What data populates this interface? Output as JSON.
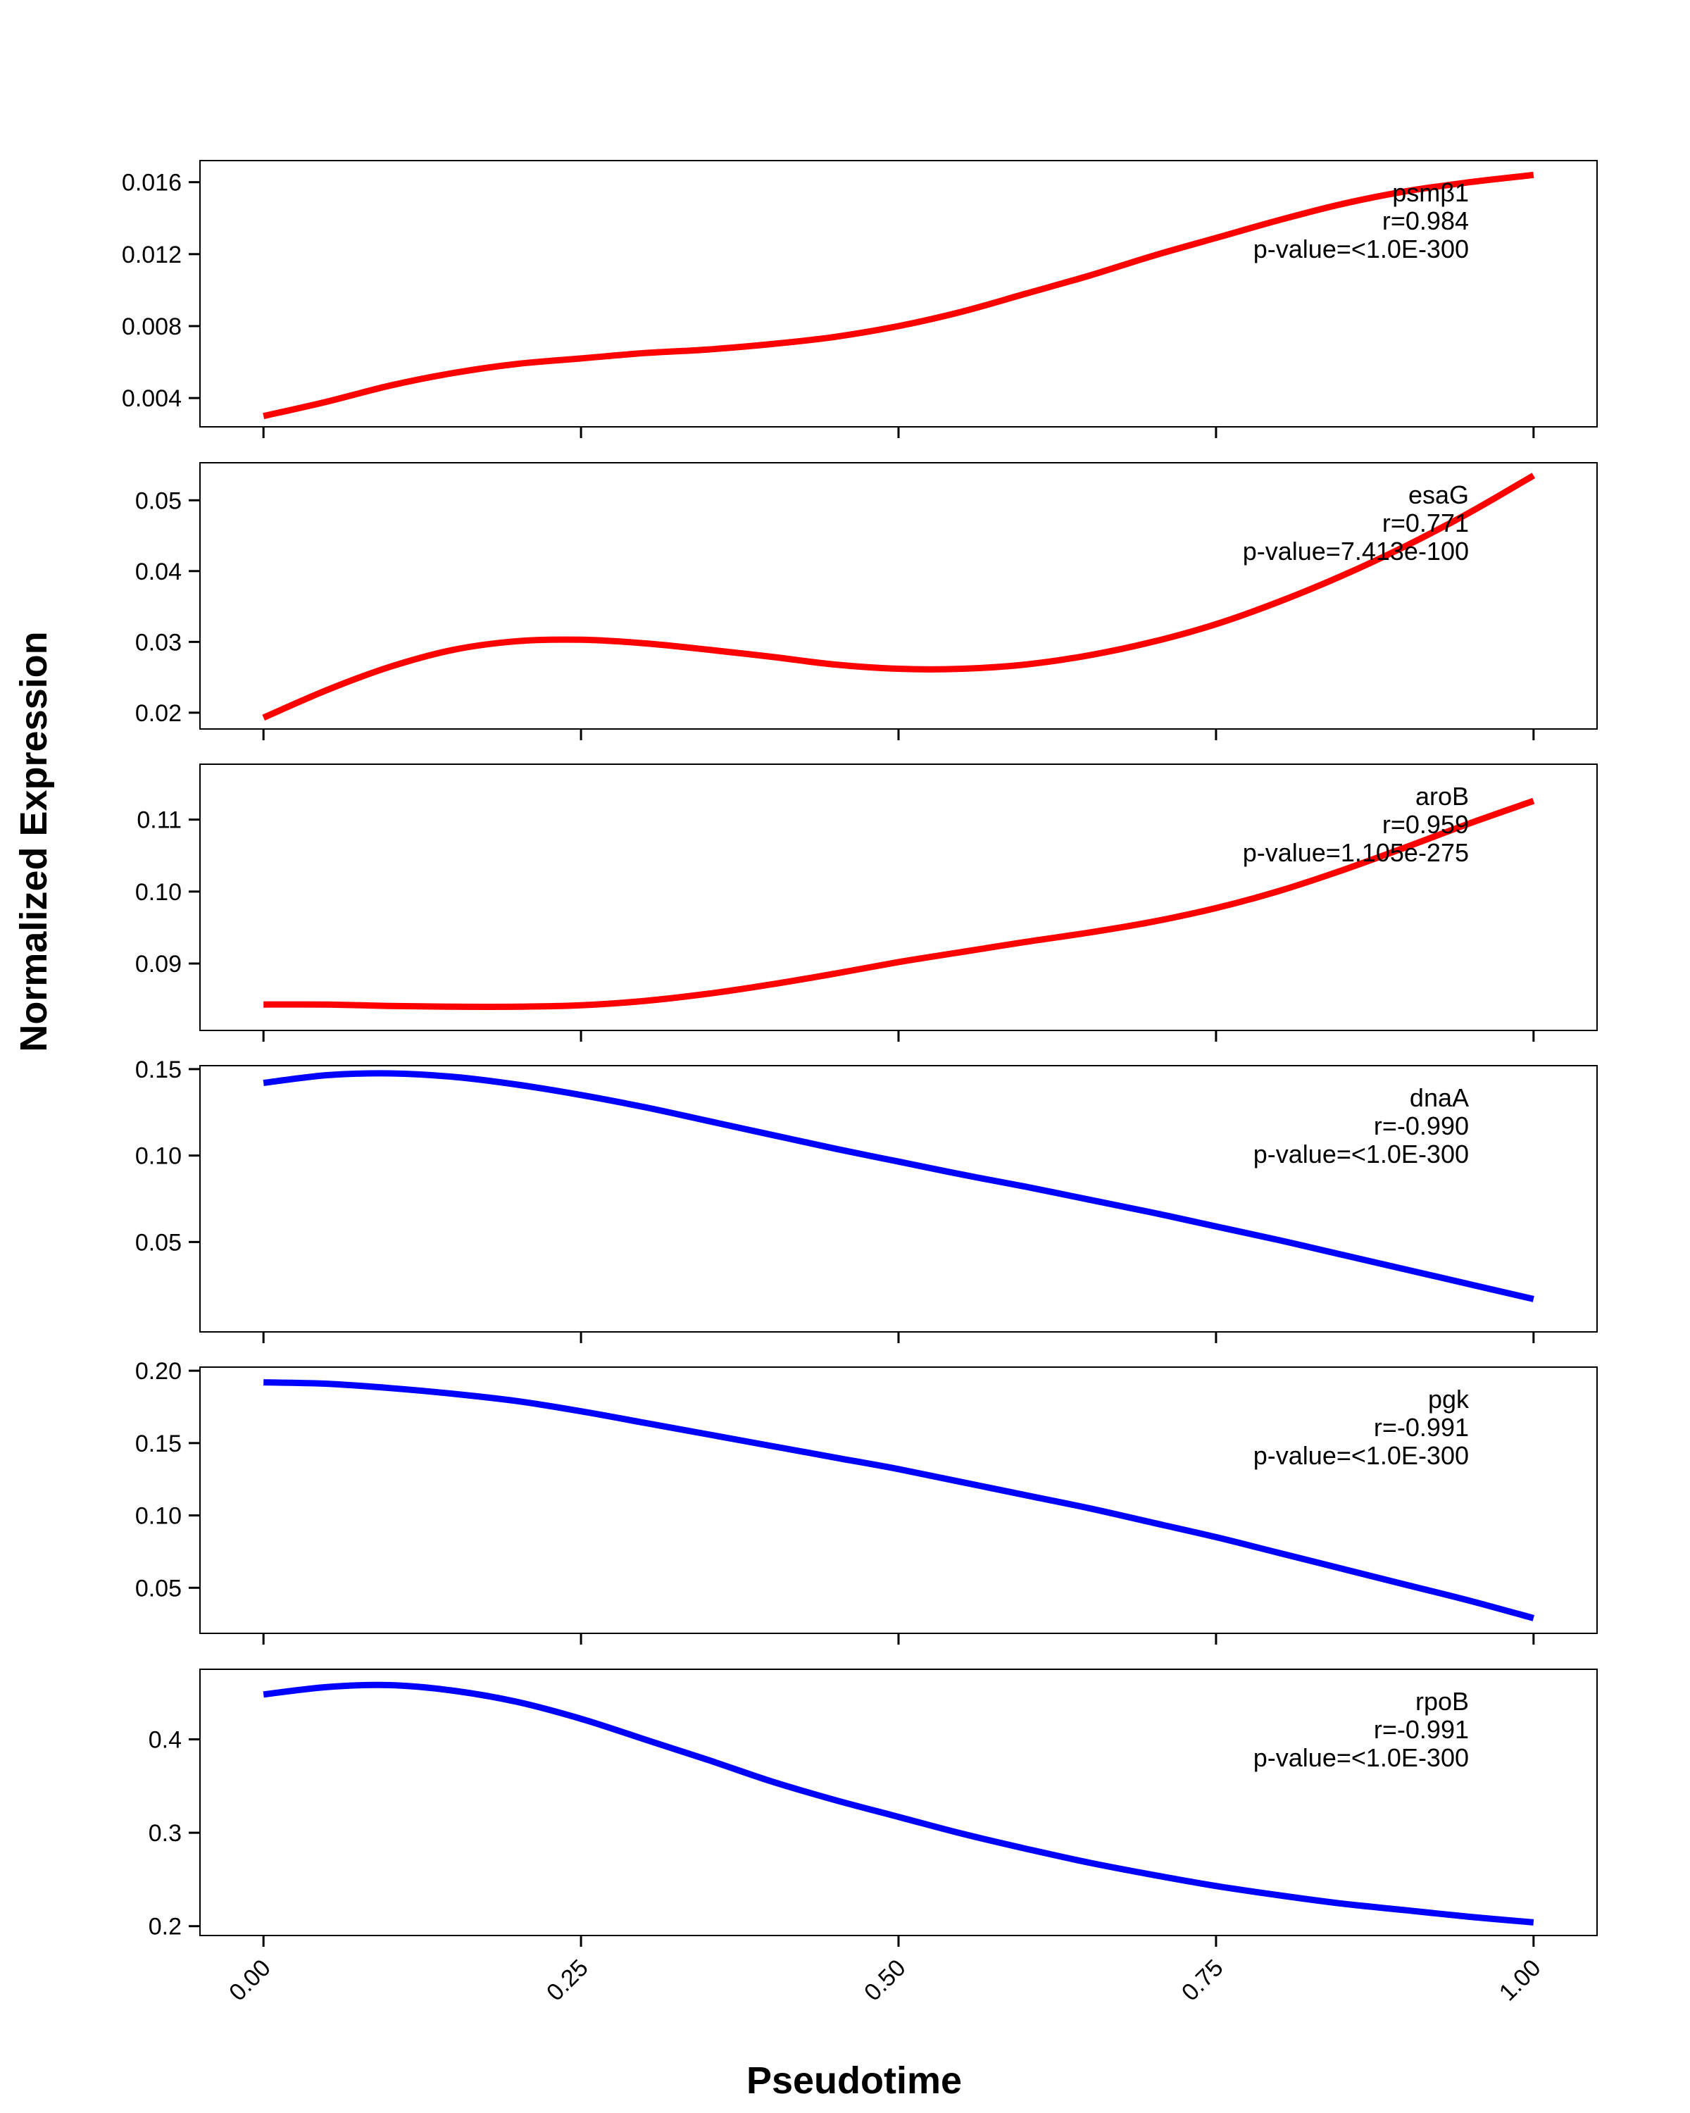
{
  "chart_data": [
    {
      "type": "line",
      "gene": "psmβ1",
      "r_text": "r=0.984",
      "p_text": "p-value=<1.0E-300",
      "color": "#ff0000",
      "ylim": [
        0.0024,
        0.0172
      ],
      "yticks": [
        0.004,
        0.008,
        0.012,
        0.016
      ],
      "ytick_labels": [
        "0.004",
        "0.008",
        "0.012",
        "0.016"
      ],
      "x": [
        0.0,
        0.05,
        0.1,
        0.15,
        0.2,
        0.25,
        0.3,
        0.35,
        0.4,
        0.45,
        0.5,
        0.55,
        0.6,
        0.65,
        0.7,
        0.75,
        0.8,
        0.85,
        0.9,
        0.95,
        1.0
      ],
      "y": [
        0.003,
        0.0038,
        0.0047,
        0.0054,
        0.0059,
        0.0062,
        0.0065,
        0.0067,
        0.007,
        0.0074,
        0.008,
        0.0088,
        0.0098,
        0.0108,
        0.0119,
        0.0129,
        0.0139,
        0.0148,
        0.0155,
        0.016,
        0.0164
      ]
    },
    {
      "type": "line",
      "gene": "esaG",
      "r_text": "r=0.771",
      "p_text": "p-value=7.413e-100",
      "color": "#ff0000",
      "ylim": [
        0.0177,
        0.0553
      ],
      "yticks": [
        0.02,
        0.03,
        0.04,
        0.05
      ],
      "ytick_labels": [
        "0.02",
        "0.03",
        "0.04",
        "0.05"
      ],
      "x": [
        0.0,
        0.05,
        0.1,
        0.15,
        0.2,
        0.25,
        0.3,
        0.35,
        0.4,
        0.45,
        0.5,
        0.55,
        0.6,
        0.65,
        0.7,
        0.75,
        0.8,
        0.85,
        0.9,
        0.95,
        1.0
      ],
      "y": [
        0.0193,
        0.0232,
        0.0265,
        0.0289,
        0.0301,
        0.0303,
        0.0298,
        0.0289,
        0.0279,
        0.0268,
        0.0262,
        0.0262,
        0.0268,
        0.0281,
        0.03,
        0.0325,
        0.0357,
        0.0394,
        0.0436,
        0.0483,
        0.0535
      ]
    },
    {
      "type": "line",
      "gene": "aroB",
      "r_text": "r=0.959",
      "p_text": "p-value=1.105e-275",
      "color": "#ff0000",
      "ylim": [
        0.0807,
        0.1177
      ],
      "yticks": [
        0.09,
        0.1,
        0.11
      ],
      "ytick_labels": [
        "0.09",
        "0.10",
        "0.11"
      ],
      "x": [
        0.0,
        0.05,
        0.1,
        0.15,
        0.2,
        0.25,
        0.3,
        0.35,
        0.4,
        0.45,
        0.5,
        0.55,
        0.6,
        0.65,
        0.7,
        0.75,
        0.8,
        0.85,
        0.9,
        0.95,
        1.0
      ],
      "y": [
        0.0843,
        0.0843,
        0.0841,
        0.084,
        0.084,
        0.0842,
        0.0848,
        0.0858,
        0.0871,
        0.0886,
        0.0902,
        0.0916,
        0.093,
        0.0943,
        0.0958,
        0.0977,
        0.1001,
        0.103,
        0.1062,
        0.1095,
        0.1126
      ]
    },
    {
      "type": "line",
      "gene": "dnaA",
      "r_text": "r=-0.990",
      "p_text": "p-value=<1.0E-300",
      "color": "#0000ff",
      "ylim": [
        -0.002,
        0.152
      ],
      "yticks": [
        0.05,
        0.1,
        0.15
      ],
      "ytick_labels": [
        "0.05",
        "0.10",
        "0.15"
      ],
      "x": [
        0.0,
        0.05,
        0.1,
        0.15,
        0.2,
        0.25,
        0.3,
        0.35,
        0.4,
        0.45,
        0.5,
        0.55,
        0.6,
        0.65,
        0.7,
        0.75,
        0.8,
        0.85,
        0.9,
        0.95,
        1.0
      ],
      "y": [
        0.142,
        0.1465,
        0.1475,
        0.1455,
        0.141,
        0.135,
        0.128,
        0.12,
        0.112,
        0.104,
        0.0965,
        0.089,
        0.082,
        0.0745,
        0.067,
        0.059,
        0.051,
        0.0425,
        0.034,
        0.0255,
        0.017
      ]
    },
    {
      "type": "line",
      "gene": "pgk",
      "r_text": "r=-0.991",
      "p_text": "p-value=<1.0E-300",
      "color": "#0000ff",
      "ylim": [
        0.0185,
        0.2025
      ],
      "yticks": [
        0.05,
        0.1,
        0.15,
        0.2
      ],
      "ytick_labels": [
        "0.05",
        "0.10",
        "0.15",
        "0.20"
      ],
      "x": [
        0.0,
        0.05,
        0.1,
        0.15,
        0.2,
        0.25,
        0.3,
        0.35,
        0.4,
        0.45,
        0.5,
        0.55,
        0.6,
        0.65,
        0.7,
        0.75,
        0.8,
        0.85,
        0.9,
        0.95,
        1.0
      ],
      "y": [
        0.192,
        0.191,
        0.188,
        0.184,
        0.179,
        0.172,
        0.164,
        0.156,
        0.148,
        0.14,
        0.132,
        0.123,
        0.114,
        0.105,
        0.095,
        0.085,
        0.074,
        0.063,
        0.052,
        0.041,
        0.029
      ]
    },
    {
      "type": "line",
      "gene": "rpoB",
      "r_text": "r=-0.991",
      "p_text": "p-value=<1.0E-300",
      "color": "#0000ff",
      "ylim": [
        0.19,
        0.475
      ],
      "yticks": [
        0.2,
        0.3,
        0.4
      ],
      "ytick_labels": [
        "0.2",
        "0.3",
        "0.4"
      ],
      "x": [
        0.0,
        0.05,
        0.1,
        0.15,
        0.2,
        0.25,
        0.3,
        0.35,
        0.4,
        0.45,
        0.5,
        0.55,
        0.6,
        0.65,
        0.7,
        0.75,
        0.8,
        0.85,
        0.9,
        0.95,
        1.0
      ],
      "y": [
        0.448,
        0.456,
        0.458,
        0.452,
        0.44,
        0.422,
        0.4,
        0.378,
        0.355,
        0.335,
        0.317,
        0.299,
        0.283,
        0.268,
        0.255,
        0.243,
        0.233,
        0.224,
        0.217,
        0.21,
        0.204
      ]
    }
  ],
  "x_axis": {
    "ticks": [
      0.0,
      0.25,
      0.5,
      0.75,
      1.0
    ],
    "tick_labels": [
      "0.00",
      "0.25",
      "0.50",
      "0.75",
      "1.00"
    ],
    "label": "Pseudotime",
    "xlim": [
      -0.05,
      1.05
    ]
  },
  "y_axis_label": "Normalized Expression"
}
